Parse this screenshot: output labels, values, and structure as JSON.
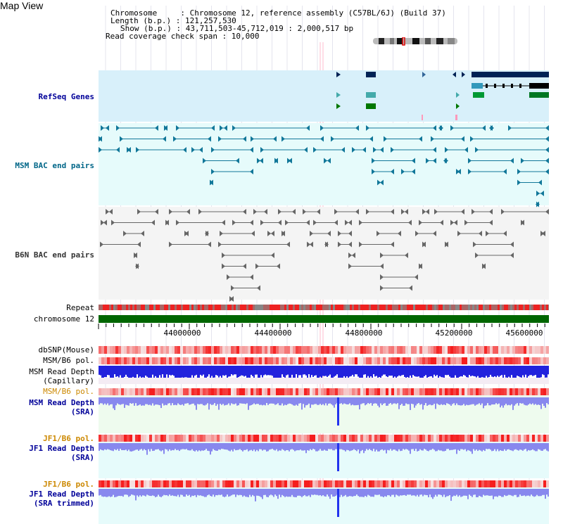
{
  "title": "Map View",
  "info": {
    "chromosome": "Chromosome     : Chromosome 12, reference assembly (C57BL/6J) (Build 37)",
    "length": "Length (b.p.) : 121,257,530",
    "show": "Show (b.p.) : 43,711,503-45,712,019 : 2,000,517 bp",
    "span": "Read coverage check span : 10,000"
  },
  "tracks": {
    "refseq": "RefSeq Genes",
    "msm_bac": "MSM BAC end pairs",
    "b6n_bac": "B6N BAC end pairs",
    "repeat": "Repeat",
    "chromosome": "chromosome 12",
    "dbsnp": "dbSNP(Mouse)",
    "msm_b6_pol": "MSM/B6 pol.",
    "msm_rd_cap_1": "MSM Read Depth",
    "msm_rd_cap_2": "(Capillary)",
    "msm_b6_pol_2": "MSM/B6 pol.",
    "msm_rd_sra_1": "MSM Read Depth",
    "msm_rd_sra_2": "(SRA)",
    "jf1_b6_pol": "JF1/B6 pol.",
    "jf1_rd_sra_1": "JF1 Read Depth",
    "jf1_rd_sra_2": "(SRA)",
    "jf1_b6_pol_2": "JF1/B6 pol.",
    "jf1_rd_trim_1": "JF1 Read Depth",
    "jf1_rd_trim_2": "(SRA trimmed)"
  },
  "axis": {
    "ticks": [
      "44000000",
      "44400000",
      "44800000",
      "45200000",
      "45600000"
    ]
  },
  "colors": {
    "refseq_label": "#000099",
    "msm_label": "#006688",
    "b6n_label": "#333333",
    "pol_label": "#cc8800",
    "depth_label": "#000099",
    "refseq_bg": "#d8f0fa",
    "msm_bg": "#e6fbfb",
    "b6n_bg": "#f4f4f4",
    "chrom_green": "#006600",
    "depth_blue": "#2222dd",
    "sra_blue": "#8888ee"
  }
}
